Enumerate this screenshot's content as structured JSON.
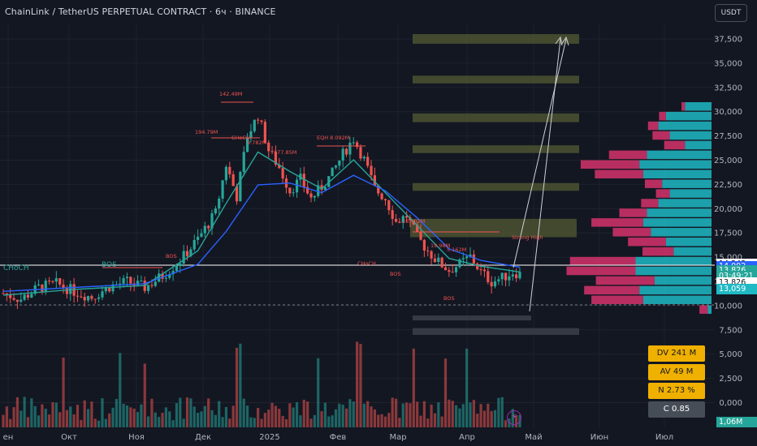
{
  "header": {
    "title": "ChainLink / TetherUS PERPETUAL CONTRACT · 6ч · BINANCE",
    "currency": "USDT"
  },
  "colors": {
    "background": "#131722",
    "up": "#26a69a",
    "down": "#ef5350",
    "volume_profile_up": "#1fb9c4",
    "volume_profile_down": "#d6336c",
    "zone": "#4b5230",
    "ema_fast": "#26a69a",
    "ema_slow": "#2962ff"
  },
  "price_tags": [
    {
      "value": "14,243",
      "price": 14243,
      "bg": "#ffffff",
      "fg": "#131722"
    },
    {
      "value": "14,002",
      "price": 14002,
      "bg": "#2962ff",
      "fg": "#ffffff"
    },
    {
      "value": "13,826",
      "price": 13600,
      "bg": "#26a69a",
      "fg": "#ffffff"
    },
    {
      "value": "03:49:21",
      "price": 12950,
      "bg": "#26a69a",
      "fg": "#ffffff"
    },
    {
      "value": "13,826",
      "price": 12320,
      "bg": "#ffffff",
      "fg": "#131722"
    },
    {
      "value": "13,059",
      "price": 11650,
      "bg": "#1fb9c4",
      "fg": "#ffffff"
    }
  ],
  "stats": [
    {
      "label": "DV 241 M",
      "bg": "#f0b000",
      "fg": "#131722"
    },
    {
      "label": "AV 49 M",
      "bg": "#f0b000",
      "fg": "#131722"
    },
    {
      "label": "N 2.73 %",
      "bg": "#f0b000",
      "fg": "#131722"
    },
    {
      "label": "C 0.85",
      "bg": "#474d57",
      "fg": "#ffffff"
    }
  ],
  "volume_tag": "1,06M",
  "structure_labels": [
    "CHoCH",
    "BOS",
    "BOS",
    "BOS",
    "Strong High",
    "142.49M",
    "194.79M",
    "177.85M",
    "EQH 8.092M",
    "5.162M",
    "19.98M",
    "28.402M",
    "9.782M",
    "CHoCH",
    "CHoCH",
    "BOS"
  ],
  "chart_data": {
    "type": "candlestick",
    "title": "ChainLink / TetherUS PERPETUAL CONTRACT · 6ч · BINANCE",
    "x_ticks": [
      "ен",
      "Окт",
      "Ноя",
      "Дек",
      "2025",
      "Фев",
      "Мар",
      "Апр",
      "Май",
      "Июн",
      "Июл"
    ],
    "y_ticks": [
      "37,500",
      "35,000",
      "32,500",
      "30,000",
      "27,500",
      "25,000",
      "22,500",
      "20,000",
      "17,500",
      "15,000",
      "12,500",
      "10,000",
      "7,500",
      "5,000",
      "2,500",
      "0,000"
    ],
    "price_range": [
      8500,
      38500
    ],
    "price_path": [
      [
        0,
        11.2
      ],
      [
        5,
        10.6
      ],
      [
        10,
        11.8
      ],
      [
        15,
        12.2
      ],
      [
        20,
        11.4
      ],
      [
        25,
        10.8
      ],
      [
        30,
        11.9
      ],
      [
        35,
        12.4
      ],
      [
        40,
        11.8
      ],
      [
        45,
        13.0
      ],
      [
        50,
        14.6
      ],
      [
        55,
        16.8
      ],
      [
        60,
        19.5
      ],
      [
        63,
        24.5
      ],
      [
        66,
        21.2
      ],
      [
        69,
        27.5
      ],
      [
        72,
        29.6
      ],
      [
        75,
        26.0
      ],
      [
        78,
        24.2
      ],
      [
        81,
        21.8
      ],
      [
        84,
        23.0
      ],
      [
        87,
        21.0
      ],
      [
        90,
        22.2
      ],
      [
        93,
        23.6
      ],
      [
        96,
        25.6
      ],
      [
        99,
        27.2
      ],
      [
        102,
        25.0
      ],
      [
        105,
        22.0
      ],
      [
        108,
        21.0
      ],
      [
        111,
        18.6
      ],
      [
        114,
        19.2
      ],
      [
        117,
        17.0
      ],
      [
        120,
        15.6
      ],
      [
        123,
        14.4
      ],
      [
        126,
        13.6
      ],
      [
        129,
        14.2
      ],
      [
        132,
        15.0
      ],
      [
        135,
        13.4
      ],
      [
        138,
        12.4
      ],
      [
        141,
        12.8
      ],
      [
        144,
        13.4
      ],
      [
        146,
        13.2
      ]
    ],
    "series": [
      {
        "name": "EMA fast",
        "color": "#26a69a",
        "values": [
          [
            0,
            11.0
          ],
          [
            20,
            11.6
          ],
          [
            40,
            12.0
          ],
          [
            55,
            15.6
          ],
          [
            63,
            20.5
          ],
          [
            72,
            25.8
          ],
          [
            81,
            23.8
          ],
          [
            90,
            22.0
          ],
          [
            99,
            25.0
          ],
          [
            108,
            21.6
          ],
          [
            117,
            18.2
          ],
          [
            126,
            14.8
          ],
          [
            135,
            14.0
          ],
          [
            146,
            13.4
          ]
        ]
      },
      {
        "name": "EMA slow",
        "color": "#2962ff",
        "values": [
          [
            0,
            11.4
          ],
          [
            20,
            11.8
          ],
          [
            40,
            12.2
          ],
          [
            55,
            14.2
          ],
          [
            63,
            17.6
          ],
          [
            72,
            22.4
          ],
          [
            81,
            22.6
          ],
          [
            90,
            21.6
          ],
          [
            99,
            23.4
          ],
          [
            108,
            21.8
          ],
          [
            117,
            19.0
          ],
          [
            126,
            15.8
          ],
          [
            135,
            14.6
          ],
          [
            146,
            13.9
          ]
        ]
      }
    ],
    "zones": [
      {
        "from": 37000,
        "to": 38000
      },
      {
        "from": 32900,
        "to": 33700
      },
      {
        "from": 28900,
        "to": 29800
      },
      {
        "from": 25700,
        "to": 26500
      },
      {
        "from": 21800,
        "to": 22600
      },
      {
        "from": 17000,
        "to": 18900
      },
      {
        "from": 8400,
        "to": 8900
      },
      {
        "from": 6900,
        "to": 7600
      }
    ],
    "volume_profile": [
      {
        "price": 30500,
        "up": 0.35,
        "down": 0.05
      },
      {
        "price": 29500,
        "up": 0.6,
        "down": 0.1
      },
      {
        "price": 28500,
        "up": 0.7,
        "down": 0.15
      },
      {
        "price": 27500,
        "up": 0.55,
        "down": 0.25
      },
      {
        "price": 26500,
        "up": 0.35,
        "down": 0.3
      },
      {
        "price": 25500,
        "up": 0.85,
        "down": 0.55
      },
      {
        "price": 24500,
        "up": 0.95,
        "down": 0.85
      },
      {
        "price": 23500,
        "up": 0.9,
        "down": 0.7
      },
      {
        "price": 22500,
        "up": 0.65,
        "down": 0.25
      },
      {
        "price": 21500,
        "up": 0.55,
        "down": 0.2
      },
      {
        "price": 20500,
        "up": 0.7,
        "down": 0.25
      },
      {
        "price": 19500,
        "up": 0.85,
        "down": 0.4
      },
      {
        "price": 18500,
        "up": 0.9,
        "down": 0.75
      },
      {
        "price": 17500,
        "up": 0.8,
        "down": 0.55
      },
      {
        "price": 16500,
        "up": 0.6,
        "down": 0.55
      },
      {
        "price": 15500,
        "up": 0.5,
        "down": 0.45
      },
      {
        "price": 14500,
        "up": 1.0,
        "down": 0.95
      },
      {
        "price": 13500,
        "up": 1.0,
        "down": 1.0
      },
      {
        "price": 12500,
        "up": 0.75,
        "down": 0.85
      },
      {
        "price": 11500,
        "up": 0.95,
        "down": 0.8
      },
      {
        "price": 10500,
        "up": 0.9,
        "down": 0.75
      },
      {
        "price": 9500,
        "up": 0.05,
        "down": 0.12
      }
    ]
  }
}
